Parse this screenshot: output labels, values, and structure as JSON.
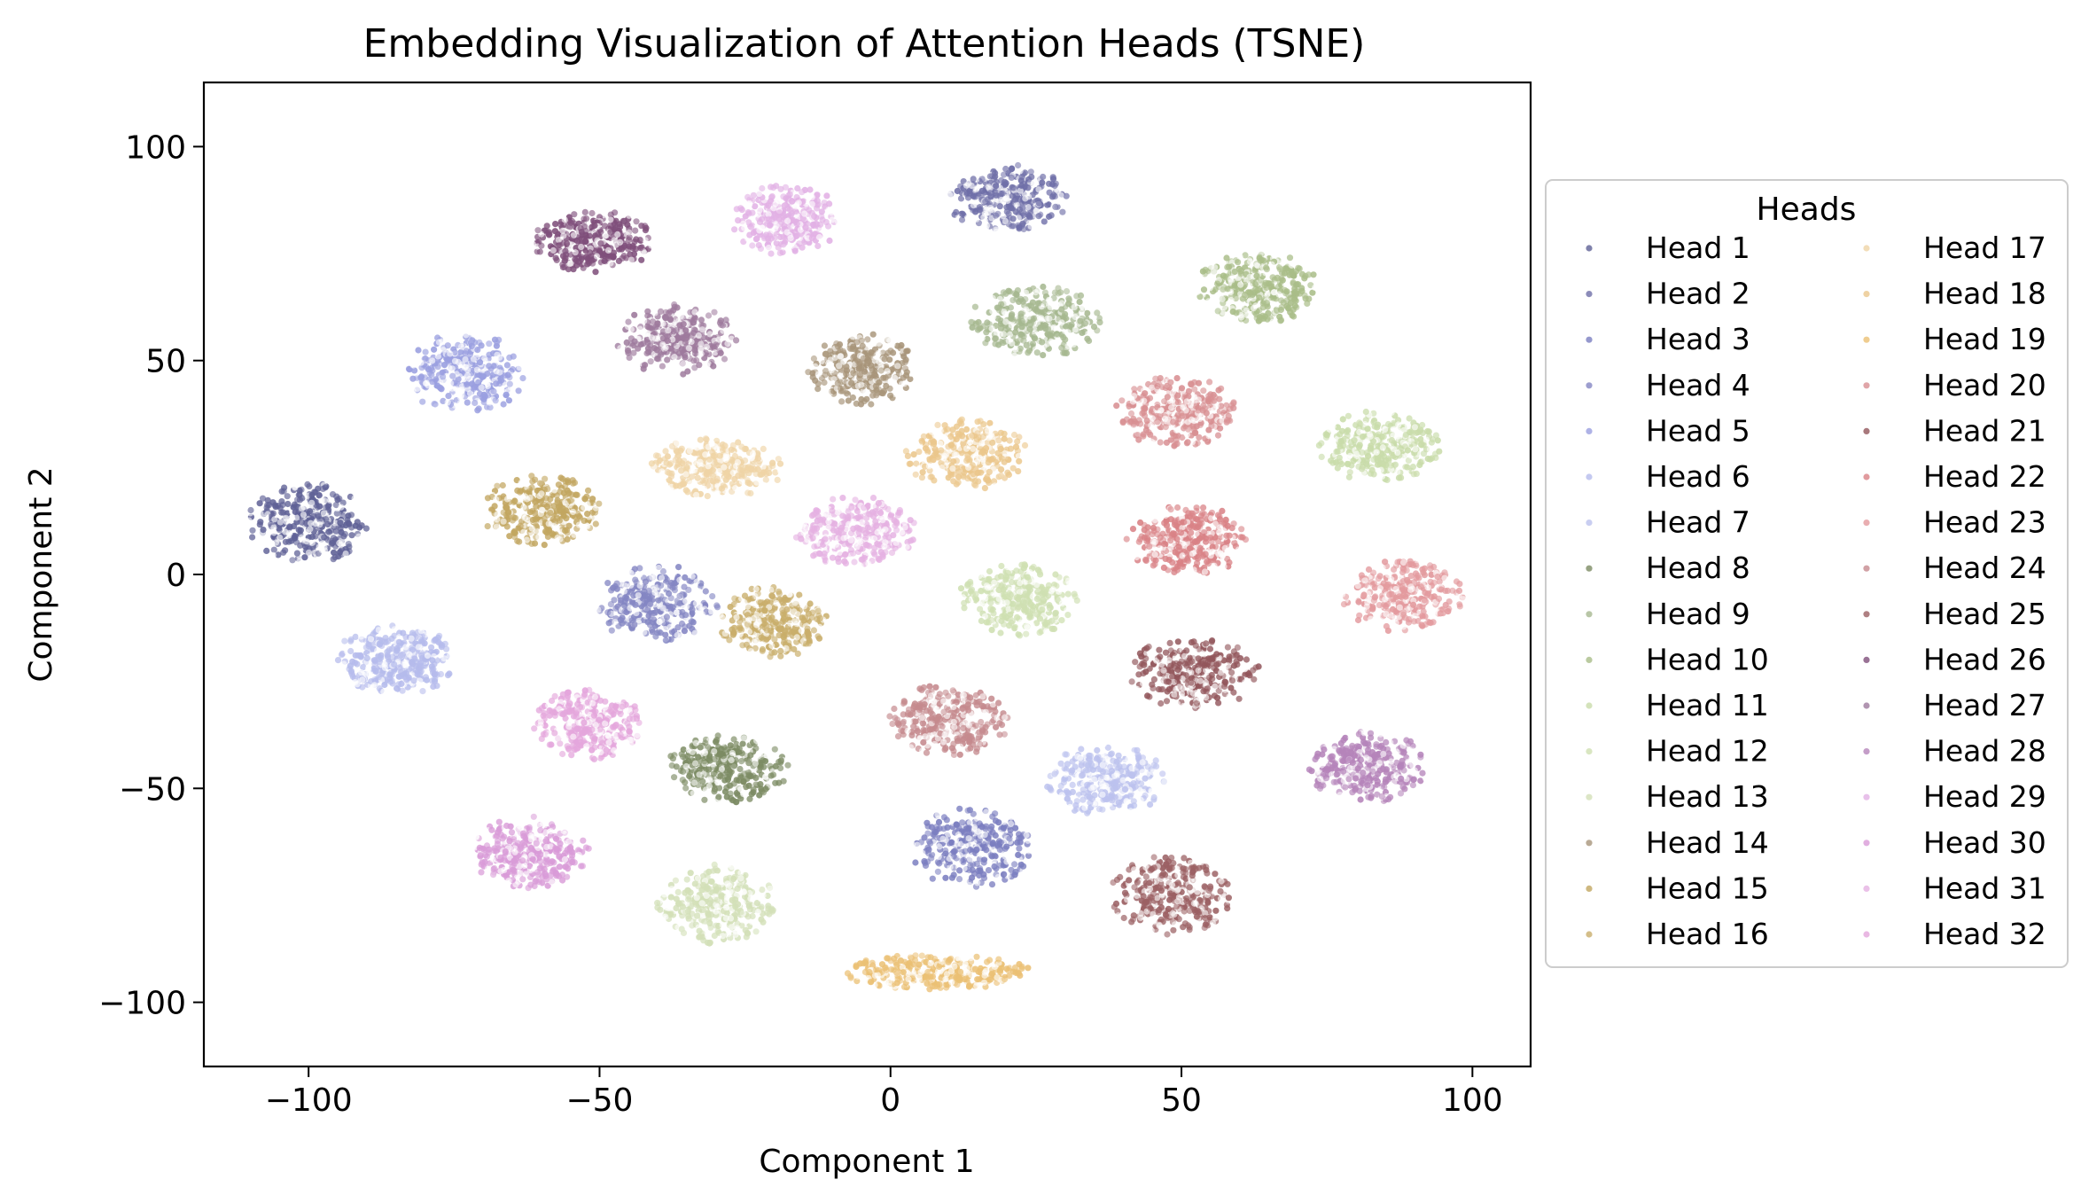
{
  "chart_data": {
    "type": "scatter",
    "title": "Embedding Visualization of Attention Heads (TSNE)",
    "xlabel": "Component 1",
    "ylabel": "Component 2",
    "xlim": [
      -118,
      110
    ],
    "ylim": [
      -115,
      115
    ],
    "xticks": [
      -100,
      -50,
      0,
      50,
      100
    ],
    "yticks": [
      -100,
      -50,
      0,
      50,
      100
    ],
    "xtick_labels": [
      "−100",
      "−50",
      "0",
      "50",
      "100"
    ],
    "ytick_labels": [
      "−100",
      "−50",
      "0",
      "50",
      "100"
    ],
    "grid": false,
    "legend": {
      "title": "Heads",
      "placement": "outside-right",
      "columns": 2
    },
    "series": [
      {
        "name": "Head 1",
        "color": "#5f6196",
        "cx": -100,
        "cy": 12,
        "sx": 10,
        "sy": 9
      },
      {
        "name": "Head 2",
        "color": "#6f6fa8",
        "cx": 20,
        "cy": 88,
        "sx": 10,
        "sy": 8
      },
      {
        "name": "Head 3",
        "color": "#7b7ec0",
        "cx": 14,
        "cy": -64,
        "sx": 10,
        "sy": 9
      },
      {
        "name": "Head 4",
        "color": "#8486c3",
        "cx": -40,
        "cy": -7,
        "sx": 10,
        "sy": 9
      },
      {
        "name": "Head 5",
        "color": "#9a9fe0",
        "cx": -73,
        "cy": 47,
        "sx": 10,
        "sy": 9
      },
      {
        "name": "Head 6",
        "color": "#b5bbec",
        "cx": -85,
        "cy": -20,
        "sx": 10,
        "sy": 8
      },
      {
        "name": "Head 7",
        "color": "#bcc2ee",
        "cx": 37,
        "cy": -48,
        "sx": 10,
        "sy": 8
      },
      {
        "name": "Head 8",
        "color": "#7c8b63",
        "cx": -28,
        "cy": -45,
        "sx": 10,
        "sy": 8
      },
      {
        "name": "Head 9",
        "color": "#a6b890",
        "cx": 25,
        "cy": 59,
        "sx": 11,
        "sy": 8
      },
      {
        "name": "Head 10",
        "color": "#a9bd88",
        "cx": 63,
        "cy": 67,
        "sx": 10,
        "sy": 8
      },
      {
        "name": "Head 11",
        "color": "#c9dcaa",
        "cx": 84,
        "cy": 30,
        "sx": 10,
        "sy": 8
      },
      {
        "name": "Head 12",
        "color": "#cfe0b2",
        "cx": 22,
        "cy": -6,
        "sx": 10,
        "sy": 8
      },
      {
        "name": "Head 13",
        "color": "#d3e0b8",
        "cx": -30,
        "cy": -77,
        "sx": 10,
        "sy": 9
      },
      {
        "name": "Head 14",
        "color": "#a8957a",
        "cx": -5,
        "cy": 48,
        "sx": 9,
        "sy": 8
      },
      {
        "name": "Head 15",
        "color": "#c2a660",
        "cx": -60,
        "cy": 15,
        "sx": 10,
        "sy": 8
      },
      {
        "name": "Head 16",
        "color": "#c9ae6b",
        "cx": -20,
        "cy": -11,
        "sx": 9,
        "sy": 8
      },
      {
        "name": "Head 17",
        "color": "#efd4a6",
        "cx": -30,
        "cy": 25,
        "sx": 11,
        "sy": 7
      },
      {
        "name": "Head 18",
        "color": "#ebc78c",
        "cx": 13,
        "cy": 28,
        "sx": 10,
        "sy": 8
      },
      {
        "name": "Head 19",
        "color": "#ebc074",
        "cx": 8,
        "cy": -93,
        "sx": 16,
        "sy": 4
      },
      {
        "name": "Head 20",
        "color": "#d88f92",
        "cx": 49,
        "cy": 38,
        "sx": 10,
        "sy": 8
      },
      {
        "name": "Head 21",
        "color": "#92565b",
        "cx": 52,
        "cy": -23,
        "sx": 11,
        "sy": 8
      },
      {
        "name": "Head 22",
        "color": "#d98286",
        "cx": 51,
        "cy": 8,
        "sx": 10,
        "sy": 8
      },
      {
        "name": "Head 23",
        "color": "#e39a9e",
        "cx": 88,
        "cy": -5,
        "sx": 10,
        "sy": 8
      },
      {
        "name": "Head 24",
        "color": "#c58a8e",
        "cx": 10,
        "cy": -34,
        "sx": 10,
        "sy": 8
      },
      {
        "name": "Head 25",
        "color": "#9b6063",
        "cx": 48,
        "cy": -75,
        "sx": 10,
        "sy": 9
      },
      {
        "name": "Head 26",
        "color": "#7f4f7b",
        "cx": -51,
        "cy": 78,
        "sx": 10,
        "sy": 7
      },
      {
        "name": "Head 27",
        "color": "#9e7a9d",
        "cx": -37,
        "cy": 55,
        "sx": 10,
        "sy": 8
      },
      {
        "name": "Head 28",
        "color": "#b584ba",
        "cx": 82,
        "cy": -45,
        "sx": 10,
        "sy": 8
      },
      {
        "name": "Head 29",
        "color": "#e2b1e5",
        "cx": -18,
        "cy": 83,
        "sx": 9,
        "sy": 8
      },
      {
        "name": "Head 30",
        "color": "#d99bd8",
        "cx": -62,
        "cy": -65,
        "sx": 10,
        "sy": 8
      },
      {
        "name": "Head 31",
        "color": "#e5b1e2",
        "cx": -6,
        "cy": 10,
        "sx": 10,
        "sy": 8
      },
      {
        "name": "Head 32",
        "color": "#e4a6dc",
        "cx": -52,
        "cy": -35,
        "sx": 9,
        "sy": 8
      }
    ]
  }
}
